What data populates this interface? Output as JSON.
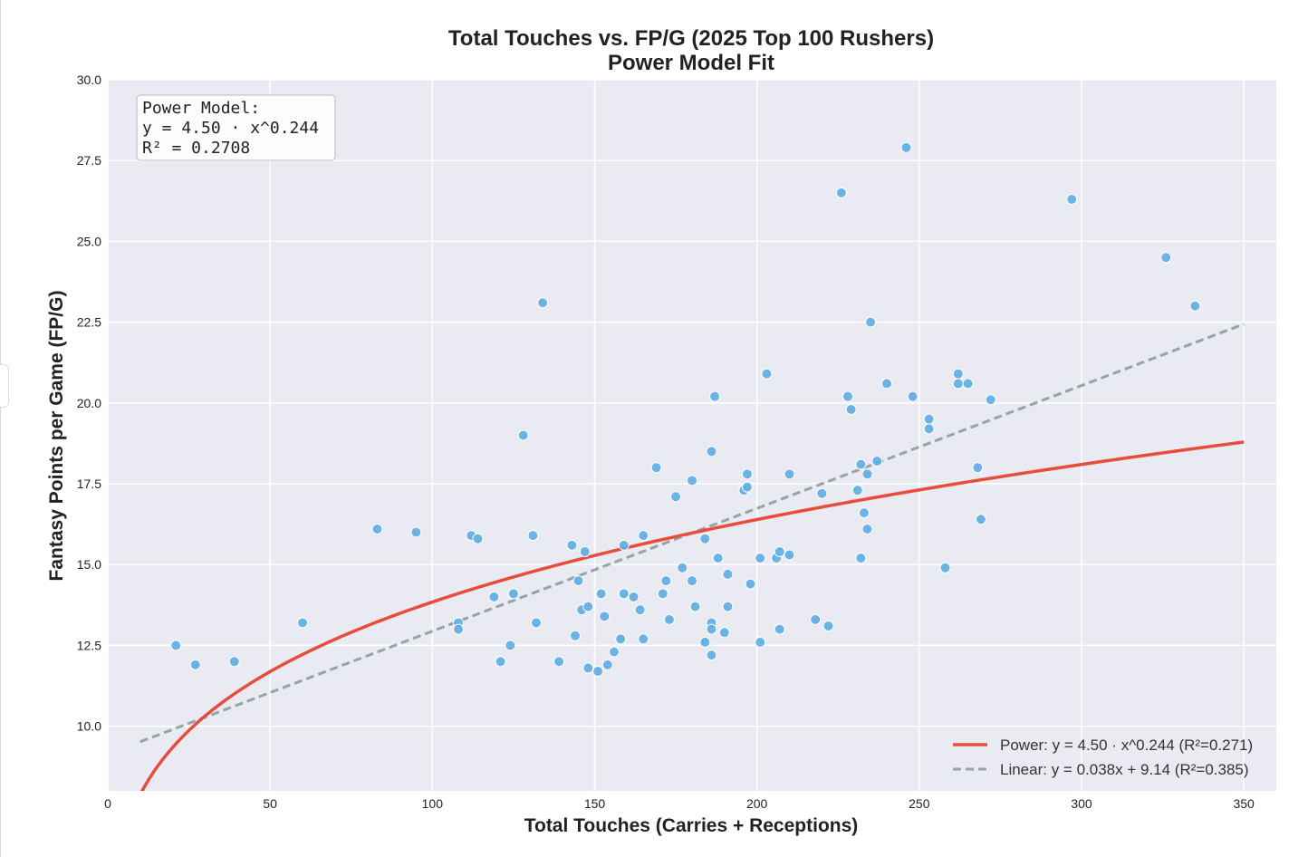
{
  "chart_data": {
    "type": "scatter",
    "title": "Total Touches vs. FP/G (2025 Top 100 Rushers)",
    "subtitle": "Power Model Fit",
    "xlabel": "Total Touches (Carries + Receptions)",
    "ylabel": "Fantasy Points per Game (FP/G)",
    "xlim": [
      0,
      360
    ],
    "ylim": [
      8.0,
      30.0
    ],
    "xticks": [
      "0",
      "50",
      "100",
      "150",
      "200",
      "250",
      "300",
      "350"
    ],
    "yticks": [
      "10.0",
      "12.5",
      "15.0",
      "17.5",
      "20.0",
      "22.5",
      "25.0",
      "27.5",
      "30.0"
    ],
    "grid": true,
    "legend_position": "bottom-right",
    "annotation": {
      "lines": [
        "Power Model:",
        "y = 4.50 · x^0.244",
        "R² = 0.2708"
      ],
      "position": "top-left"
    },
    "series": [
      {
        "name": "",
        "type": "scatter",
        "color": "#5dade2",
        "points": [
          [
            21,
            12.5
          ],
          [
            27,
            11.9
          ],
          [
            39,
            12.0
          ],
          [
            60,
            13.2
          ],
          [
            83,
            16.1
          ],
          [
            95,
            16.0
          ],
          [
            108,
            13.2
          ],
          [
            108,
            13.0
          ],
          [
            112,
            15.9
          ],
          [
            114,
            15.8
          ],
          [
            119,
            14.0
          ],
          [
            121,
            12.0
          ],
          [
            124,
            12.5
          ],
          [
            125,
            14.1
          ],
          [
            128,
            19.0
          ],
          [
            131,
            15.9
          ],
          [
            132,
            13.2
          ],
          [
            134,
            23.1
          ],
          [
            139,
            12.0
          ],
          [
            143,
            15.6
          ],
          [
            144,
            12.8
          ],
          [
            145,
            14.5
          ],
          [
            146,
            13.6
          ],
          [
            147,
            15.4
          ],
          [
            148,
            11.8
          ],
          [
            148,
            13.7
          ],
          [
            151,
            11.7
          ],
          [
            152,
            14.1
          ],
          [
            153,
            13.4
          ],
          [
            154,
            11.9
          ],
          [
            156,
            12.3
          ],
          [
            158,
            12.7
          ],
          [
            159,
            15.6
          ],
          [
            159,
            14.1
          ],
          [
            162,
            14.0
          ],
          [
            164,
            13.6
          ],
          [
            165,
            15.9
          ],
          [
            165,
            12.7
          ],
          [
            169,
            18.0
          ],
          [
            171,
            14.1
          ],
          [
            172,
            14.5
          ],
          [
            173,
            13.3
          ],
          [
            175,
            17.1
          ],
          [
            177,
            14.9
          ],
          [
            180,
            17.6
          ],
          [
            180,
            14.5
          ],
          [
            181,
            13.7
          ],
          [
            184,
            15.8
          ],
          [
            184,
            12.6
          ],
          [
            186,
            18.5
          ],
          [
            186,
            13.2
          ],
          [
            186,
            13.0
          ],
          [
            186,
            12.2
          ],
          [
            187,
            20.2
          ],
          [
            188,
            15.2
          ],
          [
            190,
            12.9
          ],
          [
            191,
            14.7
          ],
          [
            191,
            13.7
          ],
          [
            196,
            17.3
          ],
          [
            197,
            17.8
          ],
          [
            197,
            17.4
          ],
          [
            198,
            14.4
          ],
          [
            201,
            15.2
          ],
          [
            201,
            12.6
          ],
          [
            203,
            20.9
          ],
          [
            206,
            15.2
          ],
          [
            207,
            15.4
          ],
          [
            207,
            13.0
          ],
          [
            210,
            17.8
          ],
          [
            210,
            15.3
          ],
          [
            218,
            13.3
          ],
          [
            220,
            17.2
          ],
          [
            222,
            13.1
          ],
          [
            226,
            26.5
          ],
          [
            228,
            20.2
          ],
          [
            229,
            19.8
          ],
          [
            231,
            17.3
          ],
          [
            232,
            18.1
          ],
          [
            232,
            15.2
          ],
          [
            233,
            16.6
          ],
          [
            234,
            17.8
          ],
          [
            234,
            16.1
          ],
          [
            235,
            22.5
          ],
          [
            237,
            18.2
          ],
          [
            240,
            20.6
          ],
          [
            246,
            27.9
          ],
          [
            248,
            20.2
          ],
          [
            253,
            19.5
          ],
          [
            253,
            19.2
          ],
          [
            258,
            14.9
          ],
          [
            262,
            20.9
          ],
          [
            262,
            20.6
          ],
          [
            265,
            20.6
          ],
          [
            268,
            18.0
          ],
          [
            269,
            16.4
          ],
          [
            272,
            20.1
          ],
          [
            297,
            26.3
          ],
          [
            326,
            24.5
          ],
          [
            335,
            23.0
          ]
        ]
      },
      {
        "name": "Power: y = 4.50 · x^0.244 (R²=0.271)",
        "type": "line",
        "color": "#e74c3c",
        "model": {
          "kind": "power",
          "a": 4.5,
          "b": 0.244,
          "x_range": [
            10,
            350
          ]
        }
      },
      {
        "name": "Linear: y = 0.038x + 9.14 (R²=0.385)",
        "type": "line",
        "color": "#95a5a6",
        "dashed": true,
        "model": {
          "kind": "linear",
          "slope": 0.038,
          "intercept": 9.14,
          "x_range": [
            10,
            350
          ]
        }
      }
    ],
    "colors": {
      "plot_background": "#eaeaf2",
      "grid": "#ffffff"
    }
  }
}
